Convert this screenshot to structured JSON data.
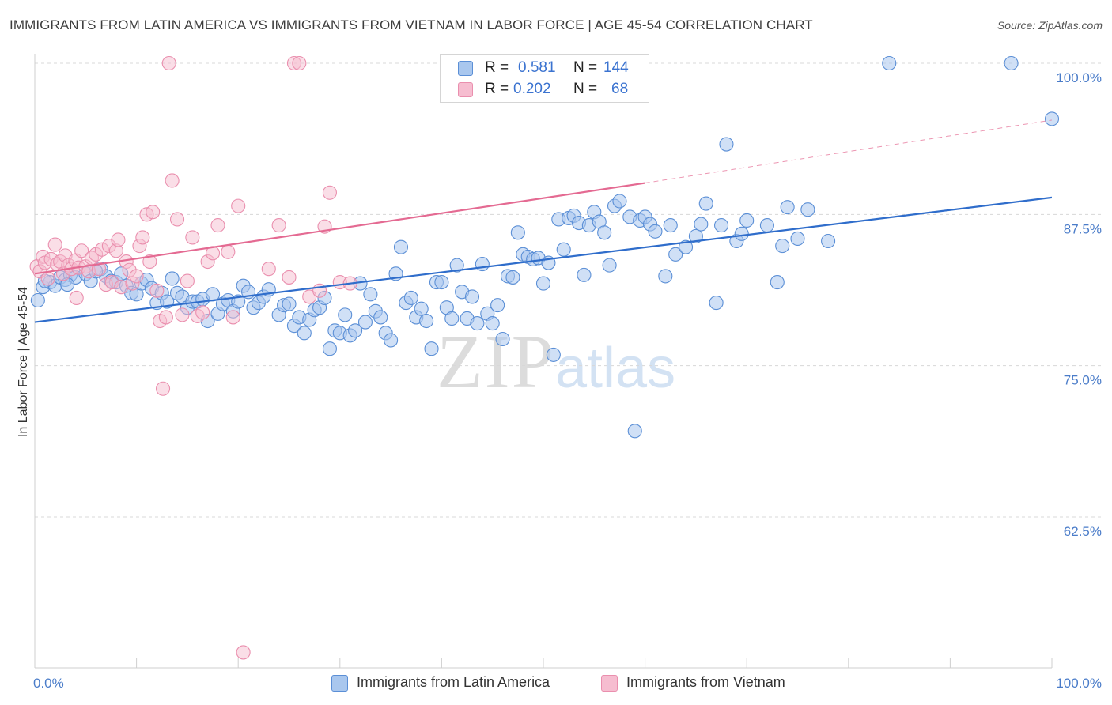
{
  "header": {
    "title": "IMMIGRANTS FROM LATIN AMERICA VS IMMIGRANTS FROM VIETNAM IN LABOR FORCE | AGE 45-54 CORRELATION CHART",
    "source": "Source: ZipAtlas.com"
  },
  "watermark": {
    "zip": "ZIP",
    "atlas": "atlas"
  },
  "legend": {
    "rows": [
      {
        "r_label": "R =",
        "r_value": "0.581",
        "n_label": "N =",
        "n_value": "144"
      },
      {
        "r_label": "R =",
        "r_value": "0.202",
        "n_label": "N =",
        "n_value": "68"
      }
    ]
  },
  "colors": {
    "blue_fill": "#a9c7ee",
    "blue_stroke": "#5b8fd6",
    "blue_line": "#2f6dcb",
    "pink_fill": "#f6bdd0",
    "pink_stroke": "#ea8fae",
    "pink_line": "#e46a92",
    "tick_text": "#4a7cc9",
    "grid": "#d8d8d8"
  },
  "chart_data": {
    "type": "scatter",
    "title": "IMMIGRANTS FROM LATIN AMERICA VS IMMIGRANTS FROM VIETNAM IN LABOR FORCE | AGE 45-54 CORRELATION CHART",
    "xlabel": "",
    "ylabel": "In Labor Force | Age 45-54",
    "xlim": [
      0,
      100
    ],
    "ylim": [
      50,
      101.5
    ],
    "x_tick_labels": [
      "0.0%",
      "100.0%"
    ],
    "y_ticks": [
      62.5,
      75.0,
      87.5,
      100.0
    ],
    "y_tick_labels": [
      "62.5%",
      "75.0%",
      "87.5%",
      "100.0%"
    ],
    "grid": "horizontal dashed",
    "legend_position": "bottom",
    "series": [
      {
        "name": "Immigrants from Latin America",
        "R": 0.581,
        "N": 144,
        "trend": {
          "x": [
            0,
            100
          ],
          "y": [
            78.6,
            88.9
          ]
        },
        "points": [
          [
            0.3,
            80.4
          ],
          [
            0.8,
            81.5
          ],
          [
            1.5,
            81.9
          ],
          [
            2,
            81.6
          ],
          [
            2.5,
            82.3
          ],
          [
            3,
            82.1
          ],
          [
            3.5,
            82.5
          ],
          [
            4,
            82.3
          ],
          [
            5,
            82.6
          ],
          [
            5.5,
            82.0
          ],
          [
            6.5,
            83.0
          ],
          [
            7,
            82.4
          ],
          [
            7.5,
            82.0
          ],
          [
            8,
            81.9
          ],
          [
            8.5,
            82.6
          ],
          [
            9,
            81.6
          ],
          [
            9.5,
            81.0
          ],
          [
            10,
            80.9
          ],
          [
            10.5,
            81.8
          ],
          [
            11,
            82.1
          ],
          [
            11.5,
            81.4
          ],
          [
            12,
            80.2
          ],
          [
            12.5,
            81.0
          ],
          [
            13,
            80.3
          ],
          [
            13.5,
            82.2
          ],
          [
            14,
            81.0
          ],
          [
            14.5,
            80.7
          ],
          [
            15,
            79.8
          ],
          [
            15.5,
            80.3
          ],
          [
            16,
            80.3
          ],
          [
            16.5,
            80.5
          ],
          [
            17,
            78.7
          ],
          [
            17.5,
            80.9
          ],
          [
            18,
            79.3
          ],
          [
            18.5,
            80.1
          ],
          [
            19,
            80.4
          ],
          [
            19.5,
            79.5
          ],
          [
            20,
            80.3
          ],
          [
            20.5,
            81.6
          ],
          [
            21,
            81.1
          ],
          [
            21.5,
            79.8
          ],
          [
            22,
            80.2
          ],
          [
            22.5,
            80.7
          ],
          [
            23,
            81.3
          ],
          [
            24,
            79.2
          ],
          [
            24.5,
            80.0
          ],
          [
            25,
            80.1
          ],
          [
            25.5,
            78.3
          ],
          [
            26,
            79.0
          ],
          [
            26.5,
            77.7
          ],
          [
            27,
            78.8
          ],
          [
            27.5,
            79.6
          ],
          [
            28,
            79.8
          ],
          [
            28.5,
            80.6
          ],
          [
            29,
            76.4
          ],
          [
            29.5,
            77.9
          ],
          [
            30,
            77.7
          ],
          [
            30.5,
            79.2
          ],
          [
            31,
            77.5
          ],
          [
            31.5,
            77.9
          ],
          [
            32,
            81.8
          ],
          [
            32.5,
            78.6
          ],
          [
            33,
            80.9
          ],
          [
            33.5,
            79.5
          ],
          [
            34,
            79.0
          ],
          [
            34.5,
            77.7
          ],
          [
            35,
            77.1
          ],
          [
            35.5,
            82.6
          ],
          [
            36,
            84.8
          ],
          [
            36.5,
            80.2
          ],
          [
            37,
            80.6
          ],
          [
            37.5,
            79.0
          ],
          [
            38,
            79.7
          ],
          [
            38.5,
            78.7
          ],
          [
            39,
            76.4
          ],
          [
            39.5,
            81.9
          ],
          [
            40,
            81.9
          ],
          [
            40.5,
            79.8
          ],
          [
            41,
            78.9
          ],
          [
            41.5,
            83.3
          ],
          [
            42,
            81.1
          ],
          [
            42.5,
            78.9
          ],
          [
            43,
            80.7
          ],
          [
            43.5,
            78.5
          ],
          [
            44,
            83.4
          ],
          [
            44.5,
            79.3
          ],
          [
            45,
            78.5
          ],
          [
            45.5,
            80.0
          ],
          [
            46,
            77.2
          ],
          [
            46.5,
            82.4
          ],
          [
            47,
            82.3
          ],
          [
            47.5,
            86.0
          ],
          [
            48,
            84.2
          ],
          [
            48.5,
            84.0
          ],
          [
            49,
            83.8
          ],
          [
            49.5,
            83.9
          ],
          [
            50,
            81.8
          ],
          [
            50.5,
            83.5
          ],
          [
            51,
            75.9
          ],
          [
            51.5,
            87.1
          ],
          [
            52,
            84.6
          ],
          [
            52.5,
            87.2
          ],
          [
            53,
            87.4
          ],
          [
            53.5,
            86.8
          ],
          [
            54,
            82.5
          ],
          [
            54.5,
            86.6
          ],
          [
            55,
            87.7
          ],
          [
            55.5,
            86.9
          ],
          [
            56,
            86.0
          ],
          [
            56.5,
            83.3
          ],
          [
            57,
            88.2
          ],
          [
            57.5,
            88.6
          ],
          [
            58.5,
            87.3
          ],
          [
            59,
            69.6
          ],
          [
            59.5,
            87.0
          ],
          [
            60,
            87.3
          ],
          [
            60.5,
            86.7
          ],
          [
            61,
            86.1
          ],
          [
            62,
            82.4
          ],
          [
            62.5,
            86.6
          ],
          [
            63,
            84.2
          ],
          [
            64,
            84.8
          ],
          [
            65,
            85.7
          ],
          [
            65.5,
            86.7
          ],
          [
            66,
            88.4
          ],
          [
            67,
            80.2
          ],
          [
            67.5,
            86.6
          ],
          [
            68,
            93.3
          ],
          [
            69,
            85.3
          ],
          [
            69.5,
            85.9
          ],
          [
            70,
            87.0
          ],
          [
            72,
            86.6
          ],
          [
            73,
            81.9
          ],
          [
            73.5,
            84.9
          ],
          [
            74,
            88.1
          ],
          [
            75,
            85.5
          ],
          [
            76,
            87.9
          ],
          [
            78,
            85.3
          ],
          [
            84,
            100.0
          ],
          [
            96,
            100.0
          ],
          [
            100,
            95.4
          ],
          [
            1,
            82.0
          ],
          [
            3.2,
            81.7
          ],
          [
            6,
            82.8
          ]
        ]
      },
      {
        "name": "Immigrants from Vietnam",
        "R": 0.202,
        "N": 68,
        "trend": {
          "x": [
            0,
            60
          ],
          "y": [
            82.6,
            90.1
          ]
        },
        "trend_dashed": {
          "x": [
            60,
            100
          ],
          "y": [
            90.1,
            95.3
          ]
        },
        "points": [
          [
            0.2,
            83.2
          ],
          [
            0.5,
            82.8
          ],
          [
            0.8,
            84.0
          ],
          [
            1,
            83.5
          ],
          [
            1.3,
            82.2
          ],
          [
            1.6,
            83.8
          ],
          [
            2,
            85.0
          ],
          [
            2.2,
            83.4
          ],
          [
            2.5,
            83.6
          ],
          [
            2.8,
            82.6
          ],
          [
            3,
            84.1
          ],
          [
            3.3,
            83.3
          ],
          [
            3.6,
            83.0
          ],
          [
            4,
            83.7
          ],
          [
            4.3,
            83.1
          ],
          [
            4.6,
            84.5
          ],
          [
            5,
            83.2
          ],
          [
            5.3,
            82.8
          ],
          [
            5.6,
            83.9
          ],
          [
            6,
            84.2
          ],
          [
            6.3,
            83.0
          ],
          [
            6.6,
            84.6
          ],
          [
            7,
            81.7
          ],
          [
            7.3,
            84.9
          ],
          [
            7.6,
            81.9
          ],
          [
            8,
            84.5
          ],
          [
            8.5,
            81.5
          ],
          [
            9,
            83.6
          ],
          [
            9.3,
            82.9
          ],
          [
            9.6,
            81.8
          ],
          [
            10,
            82.4
          ],
          [
            10.3,
            84.9
          ],
          [
            10.6,
            85.6
          ],
          [
            11,
            87.5
          ],
          [
            11.3,
            83.6
          ],
          [
            11.6,
            87.7
          ],
          [
            12,
            81.2
          ],
          [
            12.3,
            78.7
          ],
          [
            12.6,
            73.1
          ],
          [
            12.9,
            79.0
          ],
          [
            13.2,
            100.0
          ],
          [
            13.5,
            90.3
          ],
          [
            14,
            87.1
          ],
          [
            14.5,
            79.2
          ],
          [
            15,
            82.0
          ],
          [
            15.5,
            85.6
          ],
          [
            16,
            79.1
          ],
          [
            16.5,
            79.4
          ],
          [
            17,
            83.6
          ],
          [
            17.5,
            84.3
          ],
          [
            18,
            86.6
          ],
          [
            19,
            84.4
          ],
          [
            19.5,
            79.0
          ],
          [
            20,
            88.2
          ],
          [
            20.5,
            51.3
          ],
          [
            23,
            83.0
          ],
          [
            24,
            86.6
          ],
          [
            25,
            82.3
          ],
          [
            25.5,
            100.0
          ],
          [
            26,
            100.0
          ],
          [
            27,
            80.7
          ],
          [
            28,
            81.2
          ],
          [
            28.5,
            86.5
          ],
          [
            29,
            89.3
          ],
          [
            30,
            81.9
          ],
          [
            31,
            81.8
          ],
          [
            8.2,
            85.4
          ],
          [
            4.1,
            80.6
          ]
        ]
      }
    ]
  },
  "bottom_legend": {
    "items": [
      {
        "label": "Immigrants from Latin America"
      },
      {
        "label": "Immigrants from Vietnam"
      }
    ]
  }
}
